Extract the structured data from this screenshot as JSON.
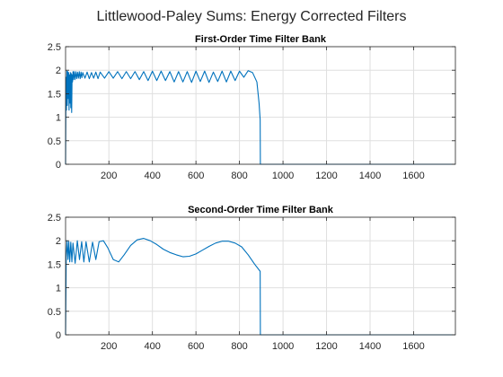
{
  "figure": {
    "title": "Littlewood-Paley Sums: Energy Corrected Filters"
  },
  "colors": {
    "line": "#0072BD",
    "grid": "#DFDFDF",
    "axis": "#262626",
    "text": "#262626",
    "background": "#FFFFFF"
  },
  "chart_data": [
    {
      "type": "line",
      "title": "First-Order Time Filter Bank",
      "xlabel": "",
      "ylabel": "",
      "xlim": [
        1,
        1792
      ],
      "ylim": [
        0,
        2.5
      ],
      "xticks": [
        200,
        400,
        600,
        800,
        1000,
        1200,
        1400,
        1600
      ],
      "xtick_labels": [
        "200",
        "400",
        "600",
        "800",
        "1000",
        "1200",
        "1400",
        "1600"
      ],
      "yticks": [
        0,
        0.5,
        1,
        1.5,
        2,
        2.5
      ],
      "ytick_labels": [
        "0",
        "0.5",
        "1",
        "1.5",
        "2",
        "2.5"
      ],
      "grid": true,
      "series": [
        {
          "x": [
            1,
            3,
            5,
            7,
            9,
            11,
            13,
            15,
            17,
            19,
            21,
            23,
            25,
            27,
            29,
            31,
            33,
            35,
            37,
            40,
            44,
            48,
            52,
            56,
            60,
            64,
            68,
            72,
            76,
            80,
            90,
            100,
            110,
            120,
            130,
            140,
            150,
            160,
            180,
            200,
            220,
            240,
            260,
            280,
            300,
            320,
            340,
            360,
            380,
            400,
            420,
            440,
            460,
            480,
            500,
            520,
            540,
            560,
            580,
            600,
            620,
            640,
            660,
            680,
            700,
            720,
            740,
            760,
            780,
            800,
            820,
            840,
            860,
            880,
            890,
            895,
            896,
            900,
            1000,
            1200,
            1400,
            1600,
            1792
          ],
          "y": [
            0.0,
            1.85,
            1.15,
            1.98,
            1.25,
            1.97,
            1.4,
            1.95,
            1.15,
            1.9,
            1.3,
            1.95,
            1.2,
            1.93,
            1.1,
            1.9,
            1.75,
            1.97,
            1.8,
            1.97,
            1.8,
            1.97,
            1.82,
            1.96,
            1.83,
            1.97,
            1.82,
            1.96,
            1.84,
            1.95,
            1.83,
            1.96,
            1.82,
            1.95,
            1.83,
            1.96,
            1.82,
            1.96,
            1.83,
            1.97,
            1.83,
            1.97,
            1.82,
            1.97,
            1.82,
            1.97,
            1.8,
            1.97,
            1.78,
            1.98,
            1.78,
            1.98,
            1.78,
            1.97,
            1.75,
            1.97,
            1.75,
            1.97,
            1.74,
            1.98,
            1.76,
            1.98,
            1.74,
            1.96,
            1.76,
            1.98,
            1.75,
            1.98,
            1.78,
            1.98,
            1.85,
            1.99,
            1.95,
            1.75,
            1.3,
            0.95,
            0.0,
            0.0,
            0.0,
            0.0,
            0.0,
            0.0,
            0.0
          ]
        }
      ]
    },
    {
      "type": "line",
      "title": "Second-Order Time Filter Bank",
      "xlabel": "",
      "ylabel": "",
      "xlim": [
        1,
        1792
      ],
      "ylim": [
        0,
        2.5
      ],
      "xticks": [
        200,
        400,
        600,
        800,
        1000,
        1200,
        1400,
        1600
      ],
      "xtick_labels": [
        "200",
        "400",
        "600",
        "800",
        "1000",
        "1200",
        "1400",
        "1600"
      ],
      "yticks": [
        0,
        0.5,
        1,
        1.5,
        2,
        2.5
      ],
      "ytick_labels": [
        "0",
        "0.5",
        "1",
        "1.5",
        "2",
        "2.5"
      ],
      "grid": true,
      "series": [
        {
          "x": [
            1,
            4,
            8,
            12,
            16,
            20,
            25,
            30,
            35,
            45,
            55,
            65,
            75,
            85,
            95,
            110,
            125,
            140,
            155,
            175,
            195,
            220,
            245,
            270,
            300,
            330,
            360,
            390,
            420,
            450,
            480,
            510,
            540,
            570,
            600,
            630,
            660,
            690,
            720,
            750,
            780,
            810,
            840,
            870,
            895,
            896,
            900,
            1000,
            1200,
            1400,
            1600,
            1792
          ],
          "y": [
            0.0,
            1.65,
            2.0,
            1.6,
            1.98,
            1.55,
            1.97,
            1.55,
            1.95,
            1.52,
            2.0,
            1.6,
            1.98,
            1.55,
            1.98,
            1.55,
            1.97,
            1.6,
            1.98,
            2.0,
            1.85,
            1.6,
            1.55,
            1.7,
            1.9,
            2.02,
            2.05,
            2.0,
            1.92,
            1.82,
            1.75,
            1.7,
            1.66,
            1.67,
            1.72,
            1.8,
            1.88,
            1.95,
            1.99,
            1.99,
            1.95,
            1.87,
            1.7,
            1.5,
            1.35,
            0.0,
            0.0,
            0.0,
            0.0,
            0.0,
            0.0,
            0.0
          ]
        }
      ]
    }
  ]
}
